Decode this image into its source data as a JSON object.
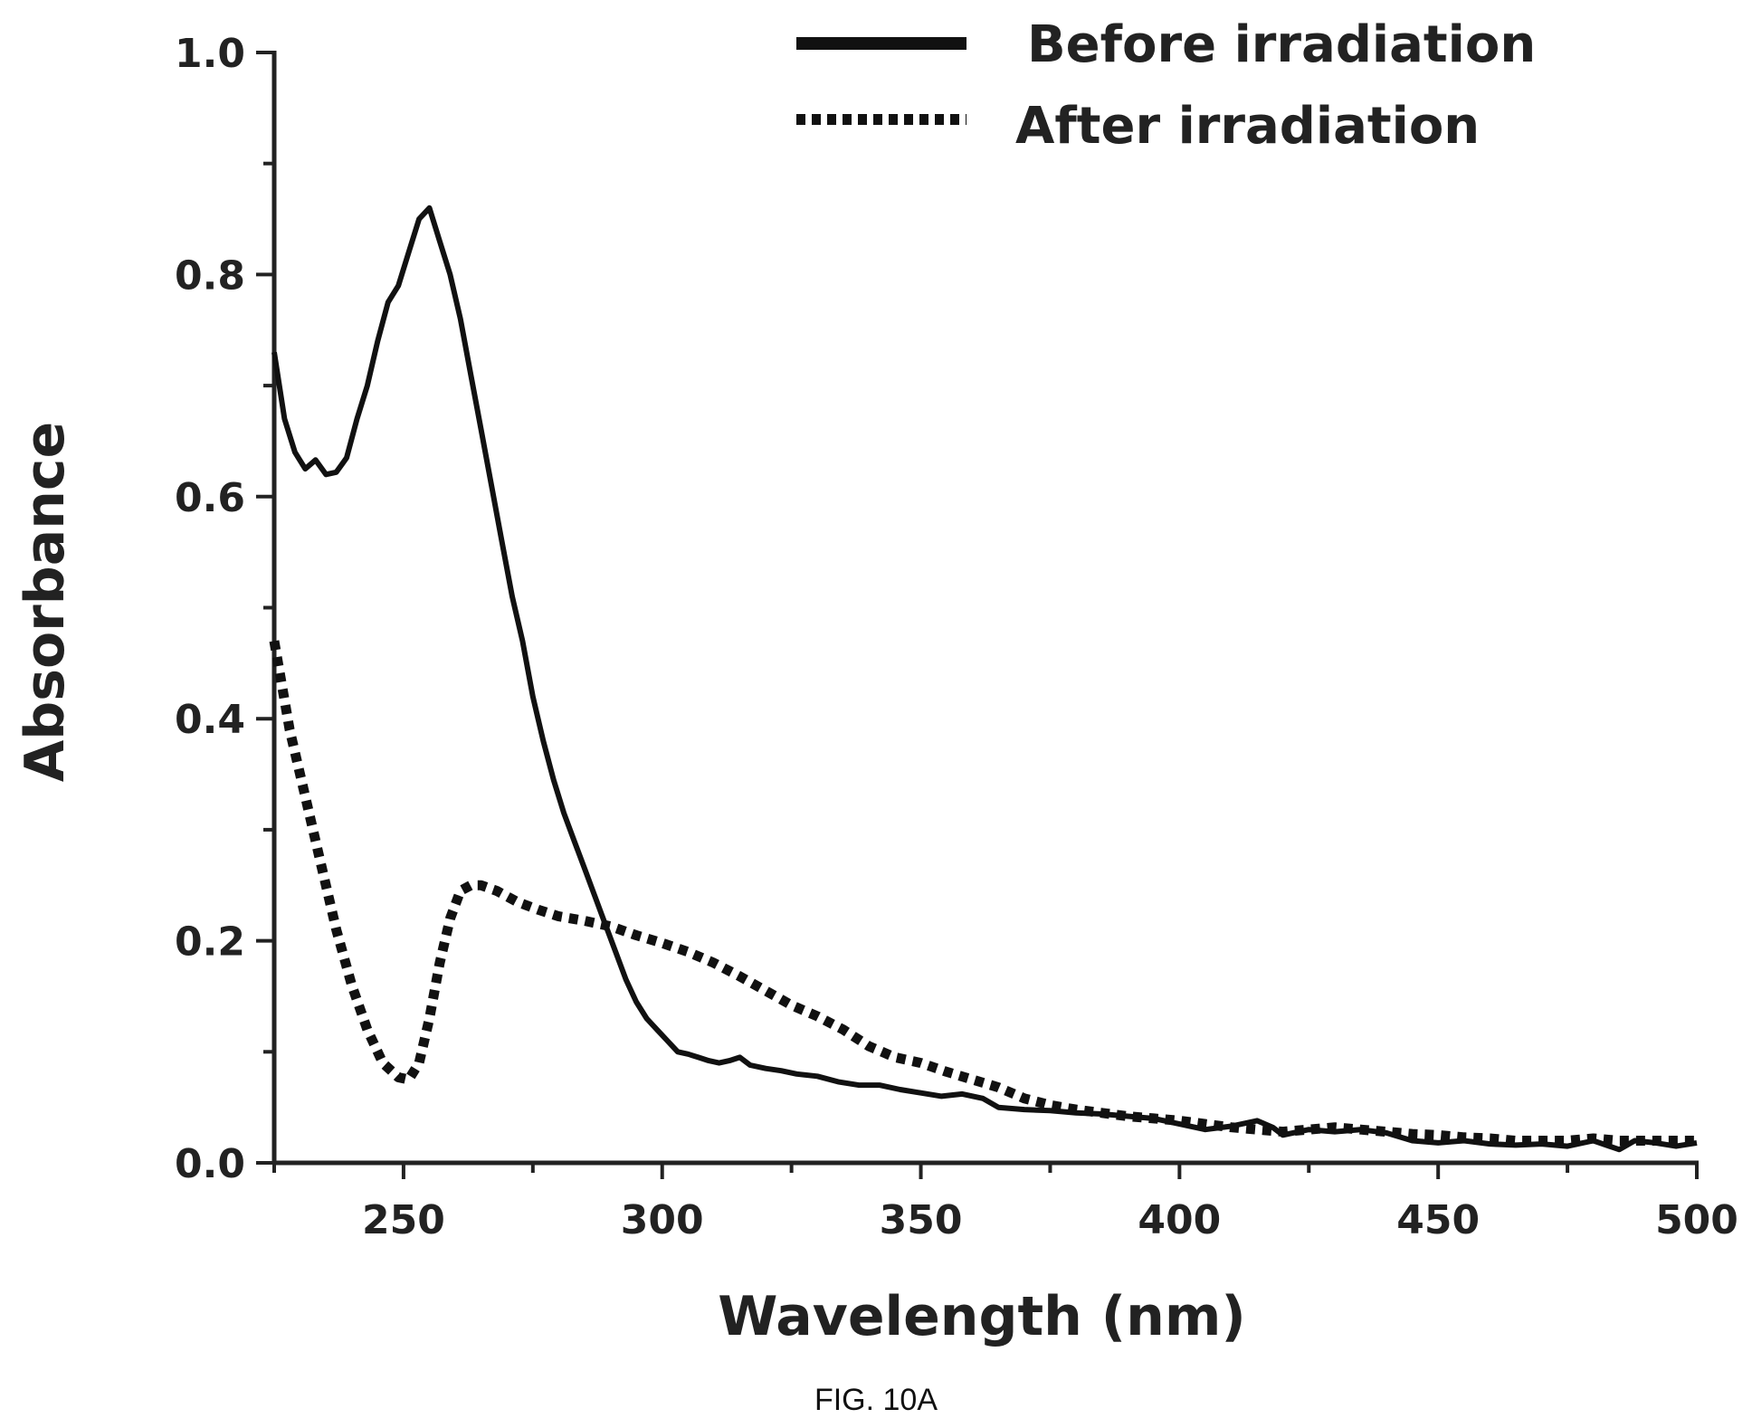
{
  "chart_data": {
    "type": "line",
    "xlabel": "Wavelength (nm)",
    "ylabel": "Absorbance",
    "xlim": [
      225,
      500
    ],
    "ylim": [
      0.0,
      1.0
    ],
    "x_ticks": [
      250,
      300,
      350,
      400,
      450,
      500
    ],
    "y_ticks": [
      "0.0",
      "0.2",
      "0.4",
      "0.6",
      "0.8",
      "1.0"
    ],
    "grid": false,
    "legend_position": "top-right",
    "series": [
      {
        "name": "Before irradiation",
        "style": "solid",
        "color": "#111111",
        "points": [
          [
            225,
            0.73
          ],
          [
            227,
            0.67
          ],
          [
            229,
            0.64
          ],
          [
            231,
            0.625
          ],
          [
            233,
            0.633
          ],
          [
            235,
            0.62
          ],
          [
            237,
            0.622
          ],
          [
            239,
            0.635
          ],
          [
            241,
            0.67
          ],
          [
            243,
            0.7
          ],
          [
            245,
            0.74
          ],
          [
            247,
            0.775
          ],
          [
            249,
            0.79
          ],
          [
            251,
            0.82
          ],
          [
            253,
            0.85
          ],
          [
            255,
            0.86
          ],
          [
            257,
            0.83
          ],
          [
            259,
            0.8
          ],
          [
            261,
            0.76
          ],
          [
            263,
            0.71
          ],
          [
            265,
            0.66
          ],
          [
            267,
            0.61
          ],
          [
            269,
            0.56
          ],
          [
            271,
            0.51
          ],
          [
            273,
            0.47
          ],
          [
            275,
            0.42
          ],
          [
            277,
            0.38
          ],
          [
            279,
            0.345
          ],
          [
            281,
            0.315
          ],
          [
            283,
            0.29
          ],
          [
            285,
            0.265
          ],
          [
            287,
            0.24
          ],
          [
            289,
            0.215
          ],
          [
            291,
            0.19
          ],
          [
            293,
            0.165
          ],
          [
            295,
            0.145
          ],
          [
            297,
            0.13
          ],
          [
            299,
            0.12
          ],
          [
            301,
            0.11
          ],
          [
            303,
            0.1
          ],
          [
            305,
            0.098
          ],
          [
            307,
            0.095
          ],
          [
            309,
            0.092
          ],
          [
            311,
            0.09
          ],
          [
            313,
            0.092
          ],
          [
            315,
            0.095
          ],
          [
            317,
            0.088
          ],
          [
            320,
            0.085
          ],
          [
            323,
            0.083
          ],
          [
            326,
            0.08
          ],
          [
            330,
            0.078
          ],
          [
            334,
            0.073
          ],
          [
            338,
            0.07
          ],
          [
            342,
            0.07
          ],
          [
            346,
            0.066
          ],
          [
            350,
            0.063
          ],
          [
            354,
            0.06
          ],
          [
            358,
            0.062
          ],
          [
            362,
            0.058
          ],
          [
            365,
            0.05
          ],
          [
            370,
            0.048
          ],
          [
            375,
            0.047
          ],
          [
            380,
            0.045
          ],
          [
            385,
            0.044
          ],
          [
            390,
            0.042
          ],
          [
            395,
            0.04
          ],
          [
            400,
            0.035
          ],
          [
            405,
            0.03
          ],
          [
            410,
            0.033
          ],
          [
            415,
            0.038
          ],
          [
            418,
            0.032
          ],
          [
            420,
            0.025
          ],
          [
            425,
            0.03
          ],
          [
            430,
            0.028
          ],
          [
            435,
            0.03
          ],
          [
            440,
            0.027
          ],
          [
            445,
            0.02
          ],
          [
            450,
            0.018
          ],
          [
            455,
            0.02
          ],
          [
            460,
            0.017
          ],
          [
            465,
            0.016
          ],
          [
            470,
            0.017
          ],
          [
            475,
            0.015
          ],
          [
            480,
            0.02
          ],
          [
            485,
            0.012
          ],
          [
            488,
            0.02
          ],
          [
            492,
            0.018
          ],
          [
            496,
            0.015
          ],
          [
            500,
            0.018
          ]
        ]
      },
      {
        "name": "After irradiation",
        "style": "dotted",
        "color": "#111111",
        "points": [
          [
            225,
            0.47
          ],
          [
            228,
            0.39
          ],
          [
            231,
            0.33
          ],
          [
            234,
            0.27
          ],
          [
            237,
            0.21
          ],
          [
            240,
            0.16
          ],
          [
            243,
            0.12
          ],
          [
            246,
            0.09
          ],
          [
            249,
            0.077
          ],
          [
            251,
            0.075
          ],
          [
            253,
            0.09
          ],
          [
            255,
            0.13
          ],
          [
            257,
            0.18
          ],
          [
            259,
            0.22
          ],
          [
            261,
            0.245
          ],
          [
            263,
            0.25
          ],
          [
            265,
            0.25
          ],
          [
            268,
            0.245
          ],
          [
            272,
            0.235
          ],
          [
            276,
            0.228
          ],
          [
            280,
            0.222
          ],
          [
            285,
            0.218
          ],
          [
            290,
            0.213
          ],
          [
            295,
            0.205
          ],
          [
            300,
            0.198
          ],
          [
            305,
            0.19
          ],
          [
            310,
            0.18
          ],
          [
            315,
            0.168
          ],
          [
            320,
            0.155
          ],
          [
            325,
            0.142
          ],
          [
            330,
            0.132
          ],
          [
            335,
            0.12
          ],
          [
            340,
            0.105
          ],
          [
            345,
            0.095
          ],
          [
            350,
            0.09
          ],
          [
            355,
            0.082
          ],
          [
            360,
            0.075
          ],
          [
            365,
            0.068
          ],
          [
            370,
            0.058
          ],
          [
            375,
            0.052
          ],
          [
            380,
            0.048
          ],
          [
            385,
            0.045
          ],
          [
            390,
            0.042
          ],
          [
            395,
            0.04
          ],
          [
            400,
            0.038
          ],
          [
            405,
            0.035
          ],
          [
            410,
            0.032
          ],
          [
            415,
            0.03
          ],
          [
            420,
            0.028
          ],
          [
            425,
            0.03
          ],
          [
            430,
            0.032
          ],
          [
            435,
            0.03
          ],
          [
            440,
            0.028
          ],
          [
            445,
            0.026
          ],
          [
            450,
            0.025
          ],
          [
            455,
            0.023
          ],
          [
            460,
            0.022
          ],
          [
            465,
            0.02
          ],
          [
            470,
            0.02
          ],
          [
            475,
            0.02
          ],
          [
            480,
            0.022
          ],
          [
            485,
            0.02
          ],
          [
            490,
            0.02
          ],
          [
            495,
            0.02
          ],
          [
            500,
            0.02
          ]
        ]
      }
    ]
  },
  "caption": "FIG. 10A"
}
